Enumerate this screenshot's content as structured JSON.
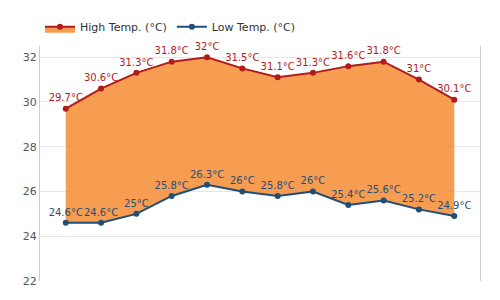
{
  "chart_data": {
    "type": "line",
    "categories": [
      null,
      null,
      null,
      null,
      null,
      null,
      null,
      null,
      null,
      null,
      null,
      null
    ],
    "series": [
      {
        "name": "Low Temp. (°C)",
        "color": "#1f4e79",
        "marker": "circle",
        "line_style": "solid",
        "values": [
          24.6,
          24.6,
          25,
          25.8,
          26.3,
          26,
          25.8,
          26,
          25.4,
          25.6,
          25.2,
          24.9
        ],
        "value_labels": [
          "24.6°C",
          "24.6°C",
          "25°C",
          "25.8°C",
          "26.3°C",
          "26°C",
          "25.8°C",
          "26°C",
          "25.4°C",
          "25.6°C",
          "25.2°C",
          "24.9°C"
        ]
      },
      {
        "name": "High Temp. (°C)",
        "color": "#b01c1c",
        "marker": "circle",
        "line_style": "solid",
        "values": [
          29.7,
          30.6,
          31.3,
          31.8,
          32,
          31.5,
          31.1,
          31.3,
          31.6,
          31.8,
          31,
          30.1
        ],
        "value_labels": [
          "29.7°C",
          "30.6°C",
          "31.3°C",
          "31.8°C",
          "32°C",
          "31.5°C",
          "31.1°C",
          "31.3°C",
          "31.6°C",
          "31.8°C",
          "31°C",
          "30.1°C"
        ]
      }
    ],
    "ylim": [
      22,
      32.5
    ],
    "yticks": [
      22,
      24,
      26,
      28,
      30,
      32
    ],
    "grid": true,
    "legend": "top",
    "data_labels": true,
    "tick_labels": "y"
  }
}
